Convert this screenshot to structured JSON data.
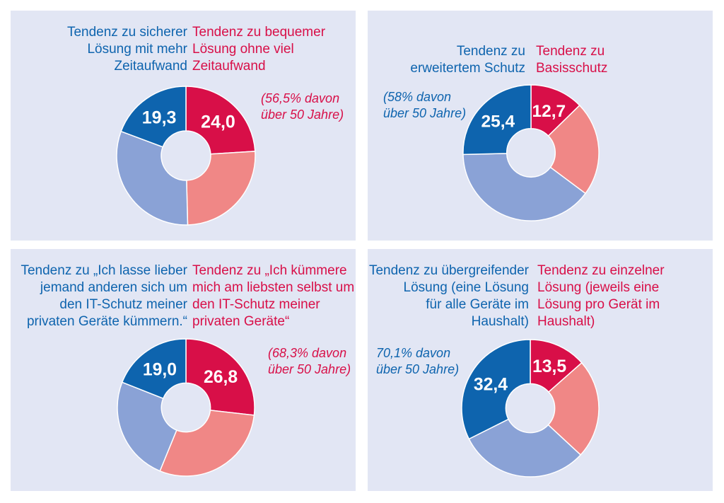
{
  "colors": {
    "panel_bg": "#e2e6f4",
    "dark_blue": "#0e64ae",
    "light_blue": "#8aa2d6",
    "crimson": "#d80f48",
    "salmon": "#f08786"
  },
  "chart_data": [
    {
      "type": "pie",
      "style": "donut",
      "left_label": [
        "Tendenz zu sicherer",
        "Lösung mit mehr",
        "Zeitaufwand"
      ],
      "right_label": [
        "Tendenz zu bequemer",
        "Lösung ohne viel",
        "Zeitaufwand"
      ],
      "note": [
        "(56,5% davon",
        "über 50 Jahre)"
      ],
      "note_side": "right",
      "slices": [
        {
          "value": 24.0,
          "label": "24,0",
          "color": "#d80f48"
        },
        {
          "value": 25.6,
          "label": "",
          "color": "#f08786"
        },
        {
          "value": 31.1,
          "label": "",
          "color": "#8aa2d6"
        },
        {
          "value": 19.3,
          "label": "19,3",
          "color": "#0e64ae"
        }
      ]
    },
    {
      "type": "pie",
      "style": "donut",
      "left_label": [
        "Tendenz zu",
        "erweitertem Schutz"
      ],
      "right_label": [
        "Tendenz zu",
        "Basisschutz"
      ],
      "note": [
        "(58% davon",
        "über 50 Jahre)"
      ],
      "note_side": "left",
      "slices": [
        {
          "value": 12.7,
          "label": "12,7",
          "color": "#d80f48"
        },
        {
          "value": 22.5,
          "label": "",
          "color": "#f08786"
        },
        {
          "value": 39.4,
          "label": "",
          "color": "#8aa2d6"
        },
        {
          "value": 25.4,
          "label": "25,4",
          "color": "#0e64ae"
        }
      ]
    },
    {
      "type": "pie",
      "style": "donut",
      "left_label": [
        "Tendenz zu „Ich lasse lieber",
        "jemand anderen sich um",
        "den IT-Schutz meiner",
        "privaten Geräte kümmern.“"
      ],
      "right_label": [
        "Tendenz zu „Ich kümmere",
        "mich am liebsten selbst um",
        "den IT-Schutz meiner",
        "privaten Geräte“"
      ],
      "note": [
        "(68,3% davon",
        "über 50 Jahre)"
      ],
      "note_side": "right",
      "slices": [
        {
          "value": 26.8,
          "label": "26,8",
          "color": "#d80f48"
        },
        {
          "value": 29.4,
          "label": "",
          "color": "#f08786"
        },
        {
          "value": 24.8,
          "label": "",
          "color": "#8aa2d6"
        },
        {
          "value": 19.0,
          "label": "19,0",
          "color": "#0e64ae"
        }
      ]
    },
    {
      "type": "pie",
      "style": "donut",
      "left_label": [
        "Tendenz zu übergreifender",
        "Lösung (eine Lösung",
        "für alle Geräte im",
        "Haushalt)"
      ],
      "right_label": [
        "Tendenz zu einzelner",
        "Lösung (jeweils eine",
        "Lösung pro Gerät im",
        "Haushalt)"
      ],
      "note": [
        "70,1% davon",
        "über 50 Jahre)"
      ],
      "note_side": "left",
      "slices": [
        {
          "value": 13.5,
          "label": "13,5",
          "color": "#d80f48"
        },
        {
          "value": 23.4,
          "label": "",
          "color": "#f08786"
        },
        {
          "value": 30.7,
          "label": "",
          "color": "#8aa2d6"
        },
        {
          "value": 32.4,
          "label": "32,4",
          "color": "#0e64ae"
        }
      ]
    }
  ]
}
